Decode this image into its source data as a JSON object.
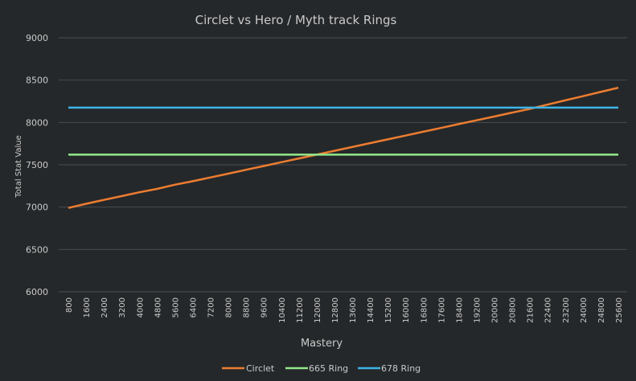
{
  "chart_data": {
    "type": "line",
    "title": "Circlet vs Hero / Myth track Rings",
    "xlabel": "Mastery",
    "ylabel": "Total Stat Value",
    "x": [
      800,
      1600,
      2400,
      3200,
      4000,
      4800,
      5600,
      6400,
      7200,
      8000,
      8800,
      9600,
      10400,
      11200,
      12000,
      12800,
      13600,
      14400,
      15200,
      16000,
      16800,
      17600,
      18400,
      19200,
      20000,
      20800,
      21600,
      22400,
      23200,
      24000,
      24800,
      25600
    ],
    "x_tick_labels": [
      "800",
      "1600",
      "2400",
      "3200",
      "4000",
      "4800",
      "5600",
      "6400",
      "7200",
      "8000",
      "8800",
      "9600",
      "10400",
      "11200",
      "12000",
      "12800",
      "13600",
      "14400",
      "15200",
      "16000",
      "16800",
      "17600",
      "18400",
      "19200",
      "20000",
      "20800",
      "21600",
      "22400",
      "23200",
      "24000",
      "24800",
      "25600"
    ],
    "ylim": [
      6000,
      9000
    ],
    "y_ticks": [
      6000,
      6500,
      7000,
      7500,
      8000,
      8500,
      9000
    ],
    "y_tick_labels": [
      "6000",
      "6500",
      "7000",
      "7500",
      "8000",
      "8500",
      "9000"
    ],
    "grid": true,
    "legend_position": "bottom",
    "series": [
      {
        "name": "Circlet",
        "color": "#ed7d31",
        "values": [
          6990,
          7040,
          7085,
          7130,
          7175,
          7215,
          7265,
          7305,
          7350,
          7395,
          7440,
          7485,
          7530,
          7575,
          7620,
          7665,
          7710,
          7755,
          7800,
          7845,
          7890,
          7935,
          7980,
          8025,
          8070,
          8115,
          8160,
          8210,
          8260,
          8310,
          8360,
          8410
        ]
      },
      {
        "name": "665 Ring",
        "color": "#92e88a",
        "values": [
          7620,
          7620,
          7620,
          7620,
          7620,
          7620,
          7620,
          7620,
          7620,
          7620,
          7620,
          7620,
          7620,
          7620,
          7620,
          7620,
          7620,
          7620,
          7620,
          7620,
          7620,
          7620,
          7620,
          7620,
          7620,
          7620,
          7620,
          7620,
          7620,
          7620,
          7620,
          7620
        ]
      },
      {
        "name": "678 Ring",
        "color": "#3cb4e6",
        "values": [
          8175,
          8175,
          8175,
          8175,
          8175,
          8175,
          8175,
          8175,
          8175,
          8175,
          8175,
          8175,
          8175,
          8175,
          8175,
          8175,
          8175,
          8175,
          8175,
          8175,
          8175,
          8175,
          8175,
          8175,
          8175,
          8175,
          8175,
          8175,
          8175,
          8175,
          8175,
          8175
        ]
      }
    ]
  },
  "colors": {
    "background": "#25282a",
    "gridline": "#4a4d50",
    "text": "#c9c9c9"
  }
}
